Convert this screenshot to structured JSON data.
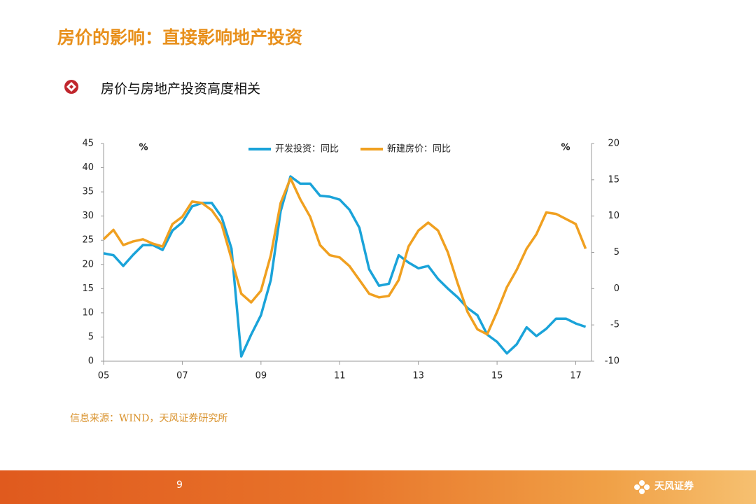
{
  "header": {
    "title": "房价的影响：直接影响地产投资",
    "bullet": "房价与房地产投资高度相关"
  },
  "chart_data": {
    "type": "line",
    "x": [
      2005.0,
      2005.25,
      2005.5,
      2005.75,
      2006.0,
      2006.25,
      2006.5,
      2006.75,
      2007.0,
      2007.25,
      2007.5,
      2007.75,
      2008.0,
      2008.25,
      2008.5,
      2008.75,
      2009.0,
      2009.25,
      2009.5,
      2009.75,
      2010.0,
      2010.25,
      2010.5,
      2010.75,
      2011.0,
      2011.25,
      2011.5,
      2011.75,
      2012.0,
      2012.25,
      2012.5,
      2012.75,
      2013.0,
      2013.25,
      2013.5,
      2013.75,
      2014.0,
      2014.25,
      2014.5,
      2014.75,
      2015.0,
      2015.25,
      2015.5,
      2015.75,
      2016.0,
      2016.25,
      2016.5,
      2016.75,
      2017.0,
      2017.25
    ],
    "series": [
      {
        "name": "开发投资：同比",
        "color": "#1aa3d9",
        "values": [
          22.3,
          21.9,
          19.7,
          22,
          24,
          24,
          23,
          27,
          28.7,
          32,
          32.7,
          32.7,
          29.8,
          23.3,
          1,
          5.5,
          9.5,
          16.8,
          31,
          38.2,
          36.7,
          36.7,
          34.2,
          34,
          33.4,
          31.3,
          27.6,
          19,
          15.6,
          16,
          21.9,
          20.4,
          19.2,
          19.7,
          17,
          15,
          13.2,
          11,
          9.5,
          5.5,
          4,
          1.6,
          3.5,
          7,
          5.2,
          6.7,
          8.8,
          8.8,
          7.8,
          7.1
        ]
      },
      {
        "name": "新建房价：同比",
        "color": "#f0a020",
        "axis": "y2",
        "values": [
          6.8,
          8.1,
          6,
          6.5,
          6.8,
          6.2,
          5.8,
          8.9,
          9.9,
          12,
          11.8,
          10.8,
          8.9,
          4.1,
          -0.7,
          -1.9,
          -0.3,
          4.6,
          11.8,
          15.2,
          12.3,
          9.9,
          6,
          4.6,
          4.3,
          3.1,
          1.2,
          -0.7,
          -1.2,
          -1,
          1.2,
          5.8,
          8,
          9.1,
          8,
          5,
          0.7,
          -3.2,
          -5.6,
          -6.3,
          -3.2,
          0.2,
          2.6,
          5.5,
          7.5,
          10.5,
          10.3,
          9.6,
          8.9,
          5.5
        ]
      }
    ],
    "xlim": [
      2005,
      2017.4
    ],
    "xticks": [
      {
        "value": 2005,
        "label": "05"
      },
      {
        "value": 2007,
        "label": "07"
      },
      {
        "value": 2009,
        "label": "09"
      },
      {
        "value": 2011,
        "label": "11"
      },
      {
        "value": 2013,
        "label": "13"
      },
      {
        "value": 2015,
        "label": "15"
      },
      {
        "value": 2017,
        "label": "17"
      }
    ],
    "ylim": [
      0,
      45
    ],
    "yticks": [
      0,
      5,
      10,
      15,
      20,
      25,
      30,
      35,
      40,
      45
    ],
    "y2lim": [
      -10,
      20
    ],
    "y2ticks": [
      -10,
      -5,
      0,
      5,
      10,
      15,
      20
    ],
    "y_label": "%",
    "y2_label": "%",
    "grid": false
  },
  "source": "信息来源：WIND，天风证券研究所",
  "footer": {
    "page_number": "9",
    "logo": "天风证券"
  }
}
